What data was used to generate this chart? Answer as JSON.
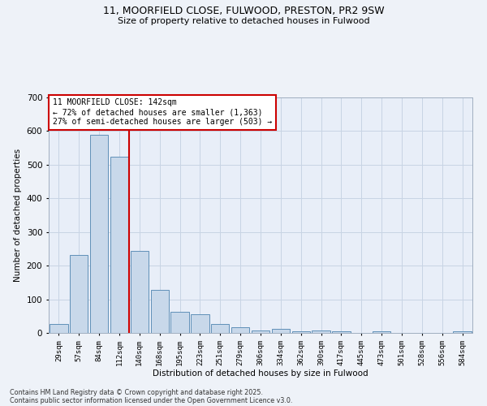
{
  "title1": "11, MOORFIELD CLOSE, FULWOOD, PRESTON, PR2 9SW",
  "title2": "Size of property relative to detached houses in Fulwood",
  "xlabel": "Distribution of detached houses by size in Fulwood",
  "ylabel": "Number of detached properties",
  "categories": [
    "29sqm",
    "57sqm",
    "84sqm",
    "112sqm",
    "140sqm",
    "168sqm",
    "195sqm",
    "223sqm",
    "251sqm",
    "279sqm",
    "306sqm",
    "334sqm",
    "362sqm",
    "390sqm",
    "417sqm",
    "445sqm",
    "473sqm",
    "501sqm",
    "528sqm",
    "556sqm",
    "584sqm"
  ],
  "values": [
    27,
    232,
    590,
    525,
    243,
    127,
    62,
    55,
    27,
    17,
    8,
    12,
    5,
    7,
    5,
    0,
    5,
    0,
    0,
    0,
    5
  ],
  "bar_color": "#c8d8ea",
  "bar_edge_color": "#6090b8",
  "vline_index": 3.5,
  "vline_color": "#cc0000",
  "annotation_line1": "11 MOORFIELD CLOSE: 142sqm",
  "annotation_line2": "← 72% of detached houses are smaller (1,363)",
  "annotation_line3": "27% of semi-detached houses are larger (503) →",
  "annotation_box_color": "#ffffff",
  "annotation_box_edge": "#cc0000",
  "ylim": [
    0,
    700
  ],
  "yticks": [
    0,
    100,
    200,
    300,
    400,
    500,
    600,
    700
  ],
  "grid_color": "#c8d4e4",
  "background_color": "#e8eef8",
  "fig_background": "#eef2f8",
  "footer1": "Contains HM Land Registry data © Crown copyright and database right 2025.",
  "footer2": "Contains public sector information licensed under the Open Government Licence v3.0."
}
